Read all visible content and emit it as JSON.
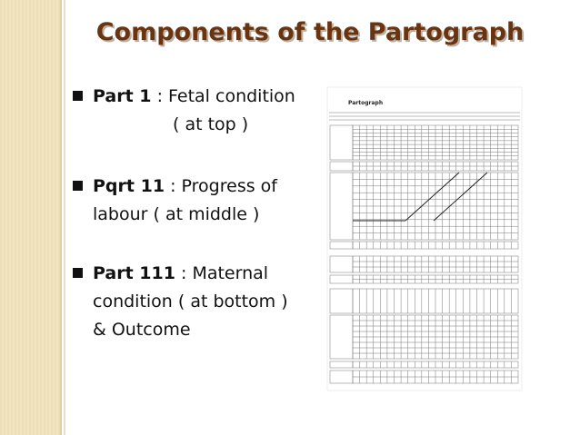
{
  "title": "Components of the Partograph",
  "bullets": [
    {
      "label": "Part 1",
      "lines": [
        " : Fetal  condition",
        "( at top )"
      ]
    },
    {
      "label": "Pqrt 11",
      "lines": [
        " : Progress of",
        "labour ( at middle )"
      ]
    },
    {
      "label": "Part 111",
      "lines": [
        " : Maternal",
        "condition ( at bottom )",
        "& Outcome"
      ]
    }
  ],
  "figure": {
    "heading": "Partograph"
  }
}
